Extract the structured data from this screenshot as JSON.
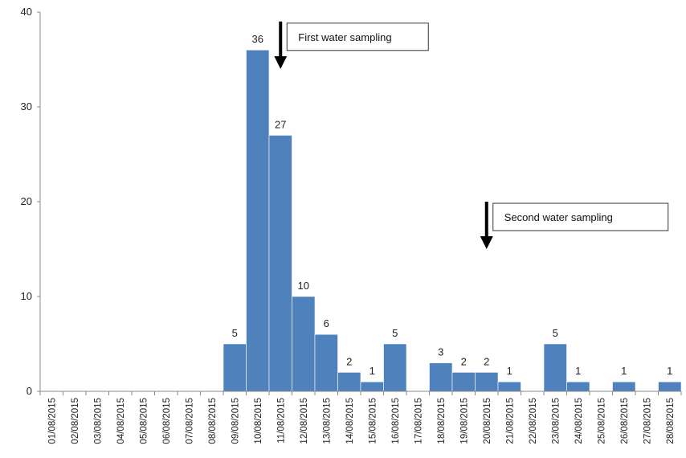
{
  "chart_data": {
    "type": "bar",
    "categories": [
      "01/08/2015",
      "02/08/2015",
      "03/08/2015",
      "04/08/2015",
      "05/08/2015",
      "06/08/2015",
      "07/08/2015",
      "08/08/2015",
      "09/08/2015",
      "10/08/2015",
      "11/08/2015",
      "12/08/2015",
      "13/08/2015",
      "14/08/2015",
      "15/08/2015",
      "16/08/2015",
      "17/08/2015",
      "18/08/2015",
      "19/08/2015",
      "20/08/2015",
      "21/08/2015",
      "22/08/2015",
      "23/08/2015",
      "24/08/2015",
      "25/08/2015",
      "26/08/2015",
      "27/08/2015",
      "28/08/2015"
    ],
    "values": [
      0,
      0,
      0,
      0,
      0,
      0,
      0,
      0,
      5,
      36,
      27,
      10,
      6,
      2,
      1,
      5,
      0,
      3,
      2,
      2,
      1,
      0,
      5,
      1,
      0,
      1,
      0,
      1
    ],
    "yticks": [
      "0",
      "10",
      "20",
      "30",
      "40"
    ],
    "ylim": [
      0,
      40
    ],
    "bar_color": "#4F81BD",
    "grid": false,
    "legend": "none",
    "annotations": [
      {
        "text": "First water sampling",
        "category": "11/08/2015",
        "arrow_value_top": 39,
        "arrow_value_bottom": 34
      },
      {
        "text": "Second water sampling",
        "category": "20/08/2015",
        "arrow_value_top": 20,
        "arrow_value_bottom": 15
      }
    ]
  }
}
